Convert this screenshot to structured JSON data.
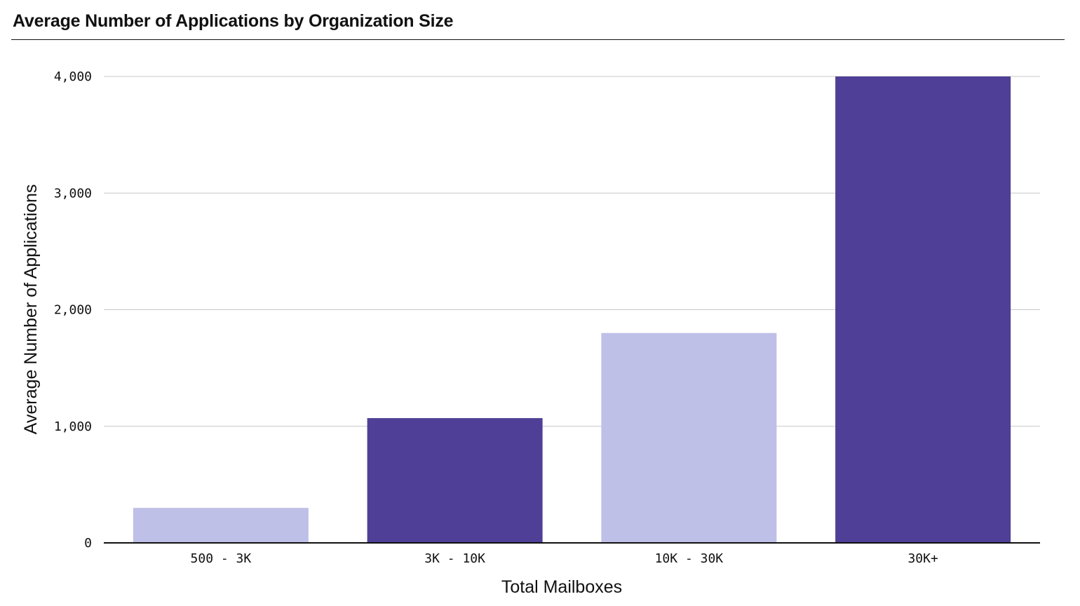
{
  "chart_data": {
    "type": "bar",
    "title": "Average Number of Applications by Organization Size",
    "xlabel": "Total Mailboxes",
    "ylabel": "Average Number of Applications",
    "categories": [
      "500 - 3K",
      "3K - 10K",
      "10K - 30K",
      "30K+"
    ],
    "values": [
      300,
      1070,
      1800,
      4000
    ],
    "bar_colors": [
      "#bfc0e8",
      "#4f3f96",
      "#bfc0e8",
      "#4f3f96"
    ],
    "ylim": [
      0,
      4000
    ],
    "yticks": [
      0,
      1000,
      2000,
      3000,
      4000
    ],
    "ytick_labels": [
      "0",
      "1,000",
      "2,000",
      "3,000",
      "4,000"
    ],
    "grid": true,
    "legend": "none"
  }
}
